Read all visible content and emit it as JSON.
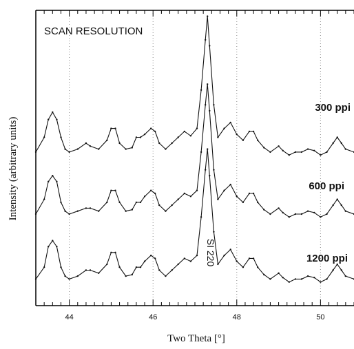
{
  "chart_data": {
    "type": "line",
    "title": "SCAN RESOLUTION",
    "xlabel": "Two Theta [°]",
    "ylabel": "Intensity (arbitrary units)",
    "xlim": [
      43.2,
      50.8
    ],
    "ylim": [
      0,
      1
    ],
    "x_ticks": [
      44,
      46,
      48,
      50
    ],
    "grid": "vertical dotted",
    "annotation": {
      "text": "SI 220",
      "x": 47.3,
      "orientation": "vertical"
    },
    "series": [
      {
        "name": "300 ppi",
        "x": [
          43.2,
          43.4,
          43.5,
          43.6,
          43.7,
          43.8,
          43.9,
          44.0,
          44.2,
          44.4,
          44.5,
          44.7,
          44.9,
          45.0,
          45.1,
          45.2,
          45.35,
          45.5,
          45.6,
          45.7,
          45.8,
          45.95,
          46.05,
          46.15,
          46.3,
          46.45,
          46.6,
          46.75,
          46.9,
          47.05,
          47.15,
          47.25,
          47.3,
          47.35,
          47.45,
          47.55,
          47.7,
          47.85,
          48.0,
          48.15,
          48.3,
          48.4,
          48.5,
          48.65,
          48.8,
          49.0,
          49.1,
          49.25,
          49.4,
          49.55,
          49.7,
          49.85,
          50.0,
          50.15,
          50.3,
          50.4,
          50.5,
          50.6,
          50.8
        ],
        "values": [
          0.52,
          0.57,
          0.63,
          0.655,
          0.63,
          0.57,
          0.53,
          0.52,
          0.53,
          0.55,
          0.54,
          0.53,
          0.56,
          0.6,
          0.6,
          0.55,
          0.53,
          0.535,
          0.57,
          0.57,
          0.58,
          0.6,
          0.59,
          0.55,
          0.53,
          0.55,
          0.57,
          0.59,
          0.575,
          0.6,
          0.73,
          0.9,
          0.98,
          0.88,
          0.68,
          0.57,
          0.6,
          0.62,
          0.58,
          0.56,
          0.59,
          0.59,
          0.56,
          0.535,
          0.52,
          0.54,
          0.525,
          0.51,
          0.52,
          0.52,
          0.53,
          0.525,
          0.51,
          0.52,
          0.55,
          0.57,
          0.55,
          0.53,
          0.52
        ]
      },
      {
        "name": "600 ppi",
        "x": [
          43.2,
          43.4,
          43.5,
          43.6,
          43.7,
          43.8,
          43.9,
          44.0,
          44.2,
          44.4,
          44.5,
          44.7,
          44.9,
          45.0,
          45.1,
          45.2,
          45.35,
          45.5,
          45.6,
          45.7,
          45.8,
          45.95,
          46.05,
          46.15,
          46.3,
          46.45,
          46.6,
          46.75,
          46.9,
          47.05,
          47.15,
          47.25,
          47.3,
          47.35,
          47.45,
          47.55,
          47.7,
          47.85,
          48.0,
          48.15,
          48.3,
          48.4,
          48.5,
          48.65,
          48.8,
          49.0,
          49.1,
          49.25,
          49.4,
          49.55,
          49.7,
          49.85,
          50.0,
          50.15,
          50.3,
          50.4,
          50.5,
          50.6,
          50.8
        ],
        "values": [
          0.31,
          0.36,
          0.42,
          0.44,
          0.42,
          0.35,
          0.32,
          0.31,
          0.32,
          0.33,
          0.33,
          0.32,
          0.35,
          0.39,
          0.39,
          0.35,
          0.32,
          0.325,
          0.35,
          0.35,
          0.37,
          0.39,
          0.38,
          0.34,
          0.32,
          0.34,
          0.36,
          0.38,
          0.37,
          0.39,
          0.52,
          0.68,
          0.75,
          0.66,
          0.46,
          0.36,
          0.39,
          0.41,
          0.37,
          0.35,
          0.38,
          0.38,
          0.35,
          0.325,
          0.31,
          0.33,
          0.315,
          0.3,
          0.31,
          0.31,
          0.32,
          0.315,
          0.3,
          0.31,
          0.34,
          0.36,
          0.34,
          0.32,
          0.31
        ]
      },
      {
        "name": "1200 ppi",
        "x": [
          43.2,
          43.4,
          43.5,
          43.6,
          43.7,
          43.8,
          43.9,
          44.0,
          44.2,
          44.4,
          44.5,
          44.7,
          44.9,
          45.0,
          45.1,
          45.2,
          45.35,
          45.5,
          45.6,
          45.7,
          45.8,
          45.95,
          46.05,
          46.15,
          46.3,
          46.45,
          46.6,
          46.75,
          46.9,
          47.05,
          47.15,
          47.25,
          47.3,
          47.35,
          47.45,
          47.55,
          47.7,
          47.85,
          48.0,
          48.15,
          48.3,
          48.4,
          48.5,
          48.65,
          48.8,
          49.0,
          49.1,
          49.25,
          49.4,
          49.55,
          49.7,
          49.85,
          50.0,
          50.15,
          50.3,
          50.4,
          50.5,
          50.6,
          50.8
        ],
        "values": [
          0.09,
          0.13,
          0.2,
          0.22,
          0.2,
          0.13,
          0.1,
          0.09,
          0.1,
          0.12,
          0.12,
          0.11,
          0.14,
          0.18,
          0.18,
          0.13,
          0.1,
          0.105,
          0.13,
          0.13,
          0.15,
          0.17,
          0.16,
          0.12,
          0.1,
          0.12,
          0.14,
          0.16,
          0.15,
          0.17,
          0.3,
          0.46,
          0.53,
          0.44,
          0.25,
          0.14,
          0.17,
          0.19,
          0.15,
          0.13,
          0.16,
          0.16,
          0.13,
          0.105,
          0.09,
          0.11,
          0.095,
          0.08,
          0.09,
          0.09,
          0.1,
          0.095,
          0.08,
          0.09,
          0.12,
          0.14,
          0.12,
          0.1,
          0.09
        ]
      }
    ]
  }
}
